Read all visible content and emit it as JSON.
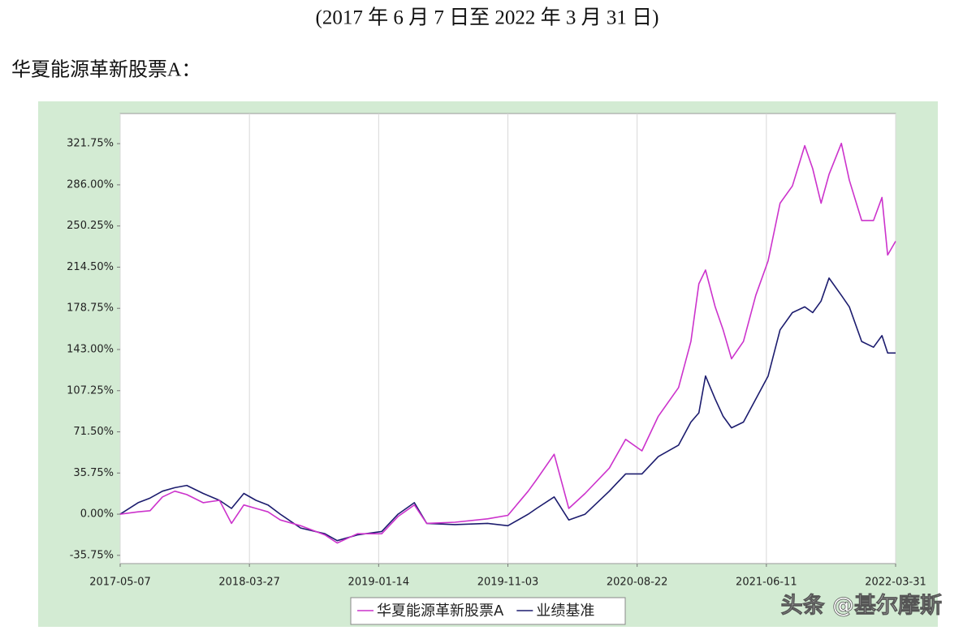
{
  "header": {
    "period": "(2017 年 6 月 7 日至 2022 年 3 月 31 日)",
    "fund_label": "华夏能源革新股票A："
  },
  "watermark": "头条 @基尔摩斯",
  "chart_data": {
    "type": "line",
    "x": [
      "2017-05-07",
      "2017-06-21",
      "2017-07-21",
      "2017-08-21",
      "2017-09-21",
      "2017-10-21",
      "2017-12-01",
      "2018-01-11",
      "2018-02-10",
      "2018-03-13",
      "2018-04-11",
      "2018-05-08",
      "2018-06-05",
      "2018-07-21",
      "2018-09-14",
      "2018-10-12",
      "2018-11-27",
      "2019-01-21",
      "2019-02-27",
      "2019-04-05",
      "2019-05-03",
      "2019-07-06",
      "2019-09-18",
      "2019-11-03",
      "2019-12-19",
      "2020-01-07",
      "2020-02-16",
      "2020-03-20",
      "2020-04-26",
      "2020-06-20",
      "2020-07-27",
      "2020-09-02",
      "2020-10-09",
      "2020-11-24",
      "2020-12-22",
      "2021-01-09",
      "2021-01-24",
      "2021-02-15",
      "2021-03-05",
      "2021-03-24",
      "2021-04-20",
      "2021-05-18",
      "2021-06-15",
      "2021-07-12",
      "2021-08-09",
      "2021-09-06",
      "2021-09-24",
      "2021-10-13",
      "2021-10-31",
      "2021-11-28",
      "2021-12-16",
      "2022-01-13",
      "2022-02-09",
      "2022-02-28",
      "2022-03-13",
      "2022-03-31"
    ],
    "series": [
      {
        "name": "华夏能源革新股票A",
        "color": "#cc33cc",
        "values": [
          0,
          2,
          3,
          15,
          20,
          17,
          10,
          12,
          -8,
          8,
          5,
          2,
          -5,
          -10,
          -18,
          -25,
          -17,
          -17,
          -2,
          8,
          -8,
          -7,
          -4,
          -1,
          20,
          30,
          52,
          5,
          18,
          40,
          65,
          55,
          85,
          110,
          150,
          200,
          212,
          180,
          160,
          135,
          150,
          190,
          220,
          270,
          285,
          320,
          300,
          270,
          295,
          322,
          290,
          255,
          255,
          275,
          225,
          237
        ]
      },
      {
        "name": "业绩基准",
        "color": "#1c1c6e",
        "values": [
          0,
          10,
          14,
          20,
          23,
          25,
          18,
          12,
          5,
          18,
          12,
          8,
          0,
          -12,
          -17,
          -23,
          -18,
          -15,
          0,
          10,
          -8,
          -9,
          -8,
          -10,
          0,
          5,
          15,
          -5,
          0,
          20,
          35,
          35,
          50,
          60,
          80,
          88,
          120,
          100,
          85,
          75,
          80,
          100,
          120,
          160,
          175,
          180,
          175,
          185,
          205,
          190,
          180,
          150,
          145,
          155,
          140,
          140
        ]
      }
    ],
    "xlim": [
      "2017-05-07",
      "2022-03-31"
    ],
    "xticks": [
      "2017-05-07",
      "2018-03-27",
      "2019-01-14",
      "2019-11-03",
      "2020-08-22",
      "2021-06-11",
      "2022-03-31"
    ],
    "ylim": [
      -42.9,
      347.9
    ],
    "yticks": [
      {
        "value": -35.75,
        "label": "-35.75%"
      },
      {
        "value": 0,
        "label": "0.00%"
      },
      {
        "value": 35.75,
        "label": "35.75%"
      },
      {
        "value": 71.5,
        "label": "71.50%"
      },
      {
        "value": 107.25,
        "label": "107.25%"
      },
      {
        "value": 143,
        "label": "143.00%"
      },
      {
        "value": 178.75,
        "label": "178.75%"
      },
      {
        "value": 214.5,
        "label": "214.50%"
      },
      {
        "value": 250.25,
        "label": "250.25%"
      },
      {
        "value": 286,
        "label": "286.00%"
      },
      {
        "value": 321.75,
        "label": "321.75%"
      }
    ],
    "grid": "x"
  }
}
